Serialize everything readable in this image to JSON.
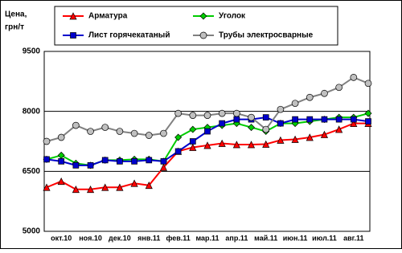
{
  "chart_data": {
    "type": "line",
    "ylabel": [
      "Цена,",
      "грн/т"
    ],
    "categories": [
      null,
      "окт.10",
      null,
      "ноя.10",
      null,
      "дек.10",
      null,
      "янв.11",
      null,
      "фев.11",
      null,
      "мар.11",
      null,
      "апр.11",
      null,
      "май.11",
      null,
      "июн.11",
      null,
      "июл.11",
      null,
      "авг.11",
      null
    ],
    "series": [
      {
        "name": "Арматура",
        "color": "#ff0000",
        "marker": "triangle",
        "values": [
          6100,
          6250,
          6050,
          6050,
          6100,
          6100,
          6200,
          6150,
          6600,
          7000,
          7100,
          7150,
          7200,
          7170,
          7170,
          7180,
          7280,
          7300,
          7350,
          7420,
          7550,
          7700,
          7700
        ]
      },
      {
        "name": "Уголок",
        "color": "#00cc00",
        "marker": "diamond",
        "values": [
          6800,
          6900,
          6700,
          6650,
          6780,
          6780,
          6800,
          6800,
          6750,
          7350,
          7550,
          7600,
          7650,
          7700,
          7600,
          7500,
          7700,
          7700,
          7750,
          7800,
          7850,
          7850,
          7950
        ]
      },
      {
        "name": "Лист горячекатаный",
        "color": "#0000cc",
        "marker": "square",
        "values": [
          6800,
          6750,
          6650,
          6650,
          6780,
          6750,
          6750,
          6780,
          6750,
          7000,
          7250,
          7500,
          7700,
          7800,
          7800,
          7850,
          7700,
          7800,
          7800,
          7800,
          7800,
          7800,
          7750
        ]
      },
      {
        "name": "Трубы электросварные",
        "color": "#808080",
        "marker": "circle",
        "values": [
          7250,
          7350,
          7650,
          7500,
          7600,
          7500,
          7450,
          7400,
          7450,
          7950,
          7900,
          7900,
          7950,
          7950,
          7850,
          7550,
          8050,
          8200,
          8350,
          8450,
          8600,
          8850,
          8700
        ]
      }
    ],
    "ylim": [
      5000,
      9500
    ],
    "yticks": [
      5000,
      6500,
      8000,
      9500
    ],
    "grid": true
  }
}
